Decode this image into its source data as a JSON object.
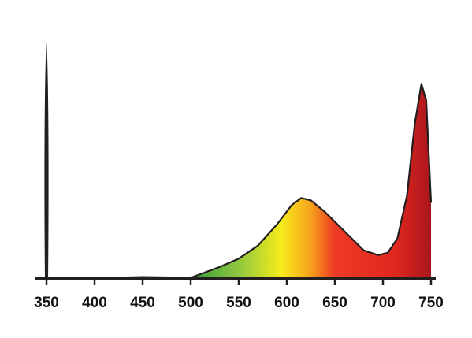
{
  "chart_data": {
    "type": "area",
    "x": [
      350,
      400,
      450,
      500,
      510,
      530,
      550,
      570,
      590,
      605,
      615,
      625,
      640,
      660,
      680,
      695,
      705,
      715,
      725,
      733,
      740,
      745,
      750
    ],
    "values": [
      0,
      0.3,
      0.8,
      0.5,
      2,
      5,
      8.5,
      14,
      23,
      31,
      34,
      33,
      28,
      20,
      12,
      10,
      11,
      17,
      35,
      65,
      82,
      75,
      32
    ],
    "xlim": [
      350,
      750
    ],
    "ylim": [
      0,
      100
    ],
    "xticks": [
      350,
      400,
      450,
      500,
      550,
      600,
      650,
      700,
      750
    ],
    "color": "#c8261f"
  }
}
